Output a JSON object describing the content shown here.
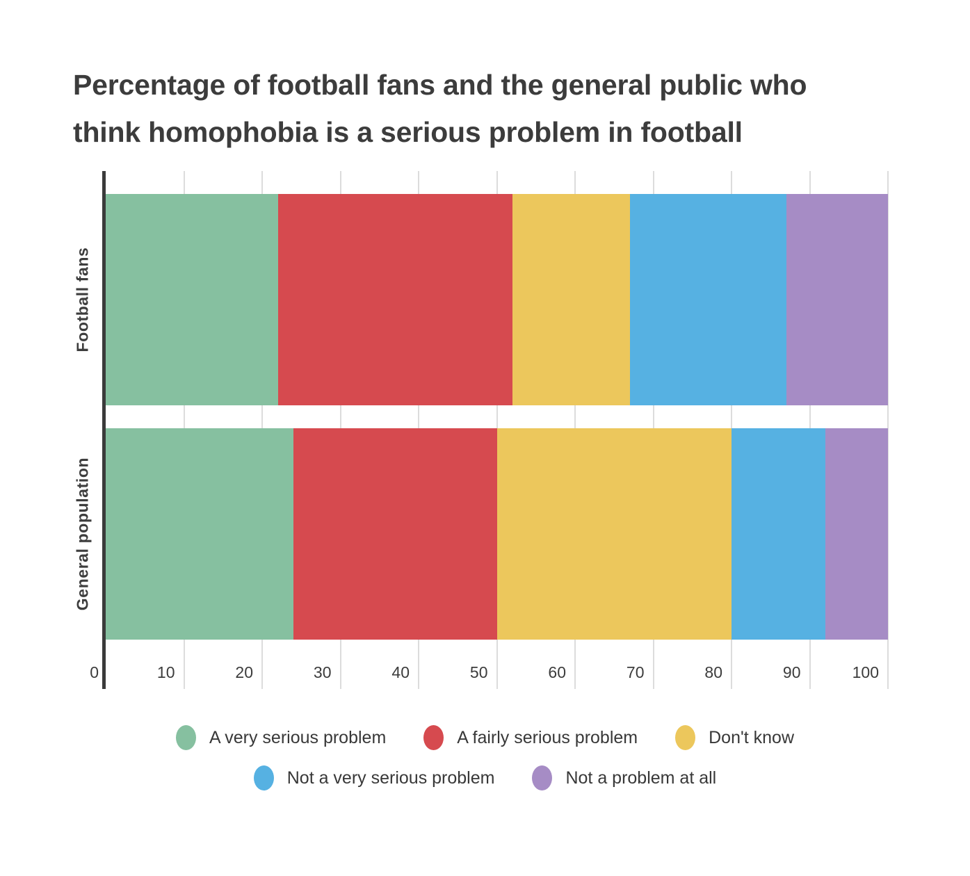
{
  "title": {
    "line1": "Percentage of football fans and the general public who",
    "line2": "think homophobia is a serious problem in football",
    "full": "Percentage of football fans and the general public who think homophobia is a serious problem in football"
  },
  "chart_data": {
    "type": "bar",
    "stacked": true,
    "orientation": "horizontal",
    "categories": [
      "Football fans",
      "General population"
    ],
    "series": [
      {
        "name": "A very serious problem",
        "color": "#86C0A0",
        "values": [
          22,
          24
        ]
      },
      {
        "name": "A fairly serious problem",
        "color": "#D64A4F",
        "values": [
          30,
          26
        ]
      },
      {
        "name": "Don't know",
        "color": "#ECC75C",
        "values": [
          15,
          30
        ]
      },
      {
        "name": "Not a very serious problem",
        "color": "#56B1E2",
        "values": [
          20,
          12
        ]
      },
      {
        "name": "Not a problem at all",
        "color": "#A68CC5",
        "values": [
          13,
          8
        ]
      }
    ],
    "x_ticks": [
      0,
      10,
      20,
      30,
      40,
      50,
      60,
      70,
      80,
      90,
      100
    ],
    "xlim": [
      0,
      100
    ],
    "xlabel": "",
    "ylabel": "",
    "grid": true,
    "legend_position": "bottom",
    "legend_rows": [
      3,
      2
    ]
  },
  "colors": {
    "background": "#ffffff",
    "axis": "#3b3b3b",
    "gridline": "#dcdcdc",
    "text": "#3c3c3c"
  }
}
